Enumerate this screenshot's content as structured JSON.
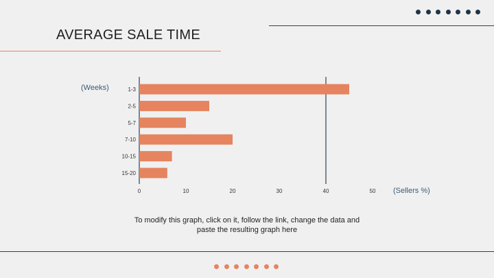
{
  "title": "AVERAGE SALE TIME",
  "note": "To modify this graph, click on it, follow the link, change the data and paste the resulting graph here",
  "colors": {
    "bar": "#e5845e",
    "axis": "#2b3f52",
    "accent": "#e5845e",
    "dark": "#1f3347"
  },
  "decor": {
    "top_dot_count": 7,
    "bottom_dot_count": 7
  },
  "chart_data": {
    "type": "bar",
    "orientation": "horizontal",
    "categories": [
      "1-3",
      "2-5",
      "5-7",
      "7-10",
      "10-15",
      "15-20"
    ],
    "values": [
      45,
      15,
      10,
      20,
      7,
      6
    ],
    "title": "",
    "xlabel": "(Sellers %)",
    "ylabel": "(Weeks)",
    "xlim": [
      0,
      50
    ],
    "xticks": [
      0,
      10,
      20,
      30,
      40,
      50
    ],
    "gridlines": [
      0,
      40
    ],
    "legend": "none"
  }
}
